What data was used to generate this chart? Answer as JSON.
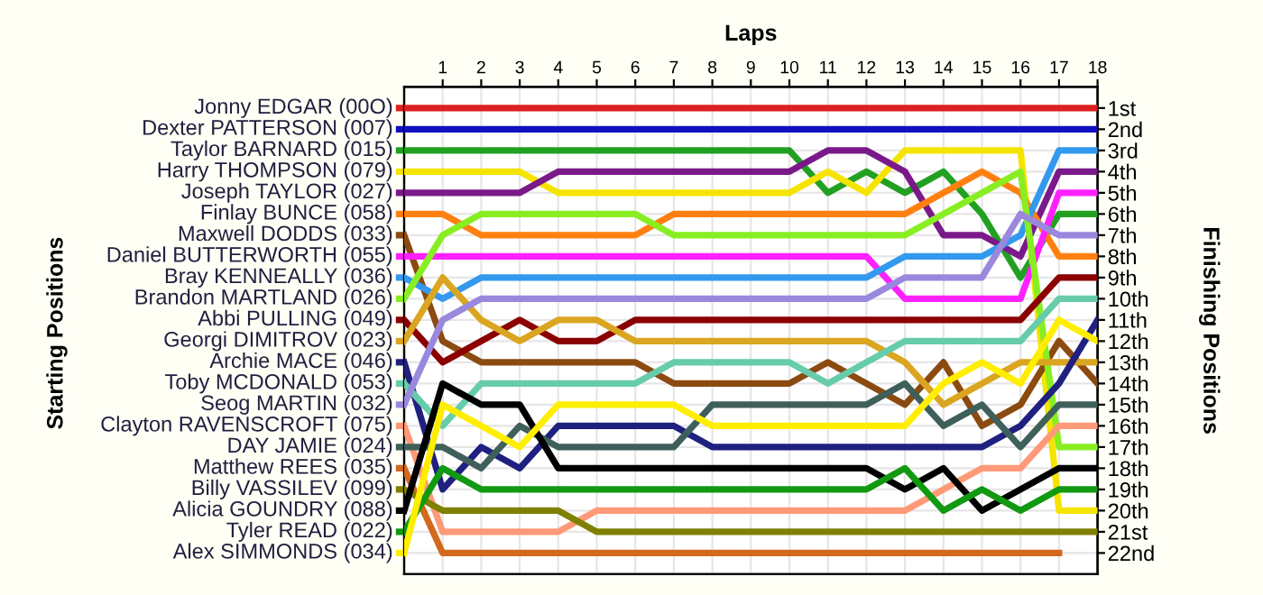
{
  "chart_data": {
    "type": "line",
    "xlabel": "Laps",
    "legend_title": "Starting Positions",
    "legend": "left",
    "y2label": "Finishing Positions",
    "x": [
      0,
      1,
      2,
      3,
      4,
      5,
      6,
      7,
      8,
      9,
      10,
      11,
      12,
      13,
      14,
      15,
      16,
      17,
      18
    ],
    "xlim": [
      0,
      18
    ],
    "xticks": [
      1,
      2,
      3,
      4,
      5,
      6,
      7,
      8,
      9,
      10,
      11,
      12,
      13,
      14,
      15,
      16,
      17,
      18
    ],
    "y2lim": [
      23,
      0
    ],
    "y2ticks": [
      {
        "value": 1,
        "label": "1st"
      },
      {
        "value": 2,
        "label": "2nd"
      },
      {
        "value": 3,
        "label": "3rd"
      },
      {
        "value": 4,
        "label": "4th"
      },
      {
        "value": 5,
        "label": "5th"
      },
      {
        "value": 6,
        "label": "6th"
      },
      {
        "value": 7,
        "label": "7th"
      },
      {
        "value": 8,
        "label": "8th"
      },
      {
        "value": 9,
        "label": "9th"
      },
      {
        "value": 10,
        "label": "10th"
      },
      {
        "value": 11,
        "label": "11th"
      },
      {
        "value": 12,
        "label": "12th"
      },
      {
        "value": 13,
        "label": "13th"
      },
      {
        "value": 14,
        "label": "14th"
      },
      {
        "value": 15,
        "label": "15th"
      },
      {
        "value": 16,
        "label": "16th"
      },
      {
        "value": 17,
        "label": "17th"
      },
      {
        "value": 18,
        "label": "18th"
      },
      {
        "value": 19,
        "label": "19th"
      },
      {
        "value": 20,
        "label": "20th"
      },
      {
        "value": 21,
        "label": "21st"
      },
      {
        "value": 22,
        "label": "22nd"
      }
    ],
    "grid": true,
    "marker": "none",
    "line_style": "solid",
    "series": [
      {
        "name": "Jonny EDGAR (00O)",
        "axis": "y2",
        "color": "#dd2020",
        "values": [
          1,
          1,
          1,
          1,
          1,
          1,
          1,
          1,
          1,
          1,
          1,
          1,
          1,
          1,
          1,
          1,
          1,
          1,
          1
        ]
      },
      {
        "name": "Dexter PATTERSON (007)",
        "axis": "y2",
        "color": "#1010c0",
        "values": [
          2,
          2,
          2,
          2,
          2,
          2,
          2,
          2,
          2,
          2,
          2,
          2,
          2,
          2,
          2,
          2,
          2,
          2,
          2
        ]
      },
      {
        "name": "Taylor BARNARD (015)",
        "axis": "y2",
        "color": "#22a022",
        "values": [
          3,
          3,
          3,
          3,
          3,
          3,
          3,
          3,
          3,
          3,
          3,
          5,
          4,
          5,
          4,
          6,
          9,
          6,
          6
        ]
      },
      {
        "name": "Harry THOMPSON (079)",
        "axis": "y2",
        "color": "#f5e400",
        "values": [
          4,
          4,
          4,
          4,
          5,
          5,
          5,
          5,
          5,
          5,
          5,
          4,
          5,
          3,
          3,
          3,
          3,
          20,
          20
        ]
      },
      {
        "name": "Joseph TAYLOR (027)",
        "axis": "y2",
        "color": "#7a1a8a",
        "values": [
          5,
          5,
          5,
          5,
          4,
          4,
          4,
          4,
          4,
          4,
          4,
          3,
          3,
          4,
          7,
          7,
          8,
          4,
          4
        ]
      },
      {
        "name": "Finlay BUNCE (058)",
        "axis": "y2",
        "color": "#ff8010",
        "values": [
          6,
          6,
          7,
          7,
          7,
          7,
          7,
          6,
          6,
          6,
          6,
          6,
          6,
          6,
          5,
          4,
          5,
          8,
          8
        ]
      },
      {
        "name": "Maxwell DODDS (033)",
        "axis": "y2",
        "color": "#8b4a10",
        "values": [
          7,
          12,
          13,
          13,
          13,
          13,
          13,
          14,
          14,
          14,
          14,
          13,
          14,
          15,
          13,
          16,
          15,
          12,
          14
        ]
      },
      {
        "name": "Daniel BUTTERWORTH (055)",
        "axis": "y2",
        "color": "#ff20ff",
        "values": [
          8,
          8,
          8,
          8,
          8,
          8,
          8,
          8,
          8,
          8,
          8,
          8,
          8,
          10,
          10,
          10,
          10,
          5,
          5
        ]
      },
      {
        "name": "Bray KENNEALLY (036)",
        "axis": "y2",
        "color": "#3399ee",
        "values": [
          9,
          10,
          9,
          9,
          9,
          9,
          9,
          9,
          9,
          9,
          9,
          9,
          9,
          8,
          8,
          8,
          7,
          3,
          3
        ]
      },
      {
        "name": "Brandon MARTLAND (026)",
        "axis": "y2",
        "color": "#88ee22",
        "values": [
          10,
          7,
          6,
          6,
          6,
          6,
          6,
          7,
          7,
          7,
          7,
          7,
          7,
          7,
          6,
          5,
          4,
          17,
          17
        ]
      },
      {
        "name": "Abbi PULLING (049)",
        "axis": "y2",
        "color": "#8b0000",
        "values": [
          11,
          13,
          12,
          11,
          12,
          12,
          11,
          11,
          11,
          11,
          11,
          11,
          11,
          11,
          11,
          11,
          11,
          9,
          9
        ]
      },
      {
        "name": "Georgi DIMITROV (023)",
        "axis": "y2",
        "color": "#daa520",
        "values": [
          12,
          9,
          11,
          12,
          11,
          11,
          12,
          12,
          12,
          12,
          12,
          12,
          12,
          13,
          15,
          14,
          13,
          13,
          13
        ]
      },
      {
        "name": "Archie MACE (046)",
        "axis": "y2",
        "color": "#202080",
        "values": [
          13,
          19,
          17,
          18,
          16,
          16,
          16,
          16,
          17,
          17,
          17,
          17,
          17,
          17,
          17,
          17,
          16,
          14,
          11
        ]
      },
      {
        "name": "Toby MCDONALD (053)",
        "axis": "y2",
        "color": "#66ccaa",
        "values": [
          14,
          16,
          14,
          14,
          14,
          14,
          14,
          13,
          13,
          13,
          13,
          14,
          13,
          12,
          12,
          12,
          12,
          10,
          10
        ]
      },
      {
        "name": "Seog MARTIN (032)",
        "axis": "y2",
        "color": "#9988dd",
        "values": [
          15,
          11,
          10,
          10,
          10,
          10,
          10,
          10,
          10,
          10,
          10,
          10,
          10,
          9,
          9,
          9,
          6,
          7,
          7
        ]
      },
      {
        "name": "Clayton RAVENSCROFT (075)",
        "axis": "y2",
        "color": "#ff9977",
        "values": [
          16,
          21,
          21,
          21,
          21,
          20,
          20,
          20,
          20,
          20,
          20,
          20,
          20,
          20,
          19,
          18,
          18,
          16,
          16
        ]
      },
      {
        "name": "DAY JAMIE (024)",
        "axis": "y2",
        "color": "#3f5f5a",
        "values": [
          17,
          17,
          18,
          16,
          17,
          17,
          17,
          17,
          15,
          15,
          15,
          15,
          15,
          14,
          16,
          15,
          17,
          15,
          15
        ]
      },
      {
        "name": "Matthew REES (035)",
        "axis": "y2",
        "color": "#d2691e",
        "values": [
          18,
          22,
          22,
          22,
          22,
          22,
          22,
          22,
          22,
          22,
          22,
          22,
          22,
          22,
          22,
          22,
          22,
          22,
          null
        ]
      },
      {
        "name": "Billy VASSILEV (099)",
        "axis": "y2",
        "color": "#808000",
        "values": [
          19,
          20,
          20,
          20,
          20,
          21,
          21,
          21,
          21,
          21,
          21,
          21,
          21,
          21,
          21,
          21,
          21,
          21,
          21
        ]
      },
      {
        "name": "Alicia GOUNDRY (088)",
        "axis": "y2",
        "color": "#000000",
        "values": [
          20,
          14,
          15,
          15,
          18,
          18,
          18,
          18,
          18,
          18,
          18,
          18,
          18,
          19,
          18,
          20,
          19,
          18,
          18
        ]
      },
      {
        "name": "Tyler READ (022)",
        "axis": "y2",
        "color": "#119911",
        "values": [
          21,
          18,
          19,
          19,
          19,
          19,
          19,
          19,
          19,
          19,
          19,
          19,
          19,
          18,
          20,
          19,
          20,
          19,
          19
        ]
      },
      {
        "name": "Alex SIMMONDS (034)",
        "axis": "y2",
        "color": "#ffee00",
        "values": [
          22,
          15,
          16,
          17,
          15,
          15,
          15,
          15,
          16,
          16,
          16,
          16,
          16,
          16,
          14,
          13,
          14,
          11,
          12
        ]
      }
    ]
  }
}
